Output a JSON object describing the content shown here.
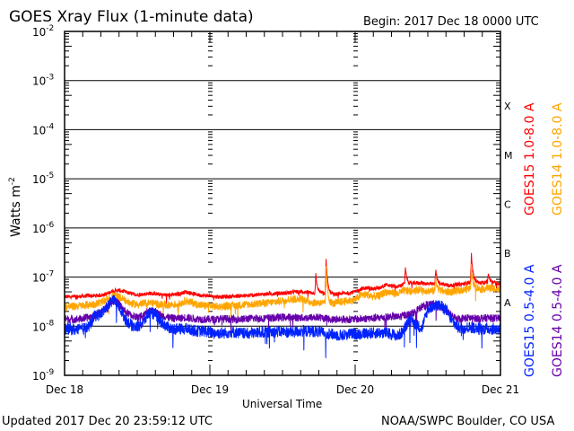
{
  "chart_data": {
    "type": "line",
    "title": "GOES Xray Flux (1-minute data)",
    "begin_label": "Begin:  2017 Dec 18 0000 UTC",
    "xlabel": "Universal Time",
    "ylabel": "Watts m",
    "ylabel_sup": "-2",
    "x_ticks": [
      "Dec 18",
      "Dec 19",
      "Dec 20",
      "Dec 21"
    ],
    "x_range_hours": [
      0,
      72
    ],
    "ylim_log10": [
      -9,
      -2
    ],
    "y_ticks": [
      {
        "base": "10",
        "exp": "-2"
      },
      {
        "base": "10",
        "exp": "-3"
      },
      {
        "base": "10",
        "exp": "-4"
      },
      {
        "base": "10",
        "exp": "-5"
      },
      {
        "base": "10",
        "exp": "-6"
      },
      {
        "base": "10",
        "exp": "-7"
      },
      {
        "base": "10",
        "exp": "-8"
      },
      {
        "base": "10",
        "exp": "-9"
      }
    ],
    "flare_classes": [
      {
        "label": "X",
        "log10": -3.5
      },
      {
        "label": "M",
        "log10": -4.5
      },
      {
        "label": "C",
        "log10": -5.5
      },
      {
        "label": "B",
        "log10": -6.5
      },
      {
        "label": "A",
        "log10": -7.5
      }
    ],
    "grid_lines_log10": [
      -3,
      -4,
      -5,
      -6,
      -7,
      -8
    ],
    "series": [
      {
        "name": "GOES15 1.0-8.0 A",
        "color": "#ff0000",
        "noise": 0.04,
        "hourly_log10": [
          -7.4,
          -7.4,
          -7.4,
          -7.39,
          -7.38,
          -7.38,
          -7.37,
          -7.34,
          -7.28,
          -7.27,
          -7.3,
          -7.34,
          -7.36,
          -7.35,
          -7.33,
          -7.34,
          -7.36,
          -7.37,
          -7.36,
          -7.34,
          -7.3,
          -7.33,
          -7.36,
          -7.38,
          -7.38,
          -7.4,
          -7.4,
          -7.4,
          -7.39,
          -7.38,
          -7.38,
          -7.37,
          -7.36,
          -7.35,
          -7.34,
          -7.33,
          -7.33,
          -7.32,
          -7.3,
          -7.3,
          -7.31,
          -7.32,
          -7.32,
          -7.34,
          -7.36,
          -7.35,
          -7.33,
          -7.32,
          -7.3,
          -7.24,
          -7.22,
          -7.24,
          -7.22,
          -7.16,
          -7.18,
          -7.2,
          -7.14,
          -7.14,
          -7.12,
          -7.12,
          -7.14,
          -7.14,
          -7.14,
          -7.16,
          -7.17,
          -7.15,
          -7.14,
          -7.1,
          -7.12,
          -7.12,
          -7.1,
          -7.12,
          -7.14
        ],
        "flares": [
          {
            "hour": 41.5,
            "log10": -6.95
          },
          {
            "hour": 43.2,
            "log10": -6.62
          },
          {
            "hour": 56.3,
            "log10": -6.82
          },
          {
            "hour": 61.3,
            "log10": -6.85
          },
          {
            "hour": 67.2,
            "log10": -6.52
          },
          {
            "hour": 70.0,
            "log10": -6.95
          }
        ]
      },
      {
        "name": "GOES14 1.0-8.0 A",
        "color": "#ffa500",
        "noise": 0.08,
        "hourly_log10": [
          -7.6,
          -7.6,
          -7.59,
          -7.58,
          -7.56,
          -7.55,
          -7.52,
          -7.46,
          -7.38,
          -7.4,
          -7.48,
          -7.54,
          -7.56,
          -7.54,
          -7.52,
          -7.54,
          -7.56,
          -7.57,
          -7.56,
          -7.54,
          -7.48,
          -7.52,
          -7.56,
          -7.58,
          -7.58,
          -7.6,
          -7.6,
          -7.59,
          -7.58,
          -7.57,
          -7.56,
          -7.55,
          -7.54,
          -7.53,
          -7.52,
          -7.5,
          -7.48,
          -7.46,
          -7.45,
          -7.44,
          -7.48,
          -7.52,
          -7.52,
          -7.54,
          -7.56,
          -7.52,
          -7.5,
          -7.48,
          -7.46,
          -7.36,
          -7.36,
          -7.4,
          -7.38,
          -7.3,
          -7.32,
          -7.34,
          -7.28,
          -7.28,
          -7.26,
          -7.26,
          -7.28,
          -7.28,
          -7.28,
          -7.3,
          -7.3,
          -7.28,
          -7.26,
          -7.22,
          -7.24,
          -7.24,
          -7.22,
          -7.24,
          -7.26
        ],
        "flares": [
          {
            "hour": 43.2,
            "log10": -6.8
          },
          {
            "hour": 61.3,
            "log10": -7.0
          },
          {
            "hour": 67.2,
            "log10": -6.8
          }
        ]
      },
      {
        "name": "GOES14 0.5-4.0 A",
        "color": "#6600aa",
        "noise": 0.08,
        "hourly_log10": [
          -7.85,
          -7.86,
          -7.86,
          -7.85,
          -7.82,
          -7.78,
          -7.72,
          -7.6,
          -7.46,
          -7.55,
          -7.7,
          -7.78,
          -7.82,
          -7.78,
          -7.68,
          -7.7,
          -7.78,
          -7.82,
          -7.84,
          -7.84,
          -7.82,
          -7.84,
          -7.85,
          -7.86,
          -7.86,
          -7.86,
          -7.85,
          -7.85,
          -7.86,
          -7.86,
          -7.85,
          -7.84,
          -7.84,
          -7.84,
          -7.83,
          -7.83,
          -7.82,
          -7.82,
          -7.82,
          -7.83,
          -7.83,
          -7.82,
          -7.82,
          -7.84,
          -7.86,
          -7.86,
          -7.86,
          -7.86,
          -7.86,
          -7.85,
          -7.84,
          -7.84,
          -7.83,
          -7.82,
          -7.8,
          -7.82,
          -7.78,
          -7.76,
          -7.7,
          -7.6,
          -7.56,
          -7.56,
          -7.6,
          -7.68,
          -7.8,
          -7.84,
          -7.84,
          -7.83,
          -7.84,
          -7.84,
          -7.83,
          -7.84,
          -7.84
        ],
        "flares": []
      },
      {
        "name": "GOES15 0.5-4.0 A",
        "color": "#0022ff",
        "noise": 0.12,
        "hourly_log10": [
          -8.05,
          -8.06,
          -8.08,
          -8.05,
          -8.02,
          -7.78,
          -7.75,
          -7.62,
          -7.46,
          -7.6,
          -7.85,
          -7.98,
          -8.02,
          -7.92,
          -7.72,
          -7.76,
          -7.92,
          -8.02,
          -8.06,
          -8.06,
          -8.05,
          -8.08,
          -8.1,
          -8.1,
          -8.12,
          -8.14,
          -8.14,
          -8.13,
          -8.12,
          -8.14,
          -8.15,
          -8.14,
          -8.13,
          -8.12,
          -8.12,
          -8.11,
          -8.11,
          -8.12,
          -8.12,
          -8.1,
          -8.1,
          -8.1,
          -8.12,
          -8.14,
          -8.16,
          -8.18,
          -8.18,
          -8.16,
          -8.16,
          -8.15,
          -8.14,
          -8.14,
          -8.13,
          -8.14,
          -8.16,
          -8.2,
          -8.1,
          -7.85,
          -7.95,
          -8.05,
          -7.66,
          -7.58,
          -7.58,
          -7.66,
          -7.9,
          -8.02,
          -8.04,
          -8.02,
          -8.04,
          -8.06,
          -8.05,
          -8.06,
          -8.06
        ],
        "flares": []
      }
    ],
    "right_legend": [
      {
        "label": "GOES15 1.0-8.0 A",
        "color": "#ff0000"
      },
      {
        "label": "GOES14 1.0-8.0 A",
        "color": "#ffa500"
      },
      {
        "label": "GOES15 0.5-4.0 A",
        "color": "#0022ff"
      },
      {
        "label": "GOES14 0.5-4.0 A",
        "color": "#6600aa"
      }
    ]
  },
  "footer": {
    "updated": "Updated 2017 Dec 20 23:59:12 UTC",
    "credit": "NOAA/SWPC Boulder, CO USA"
  }
}
